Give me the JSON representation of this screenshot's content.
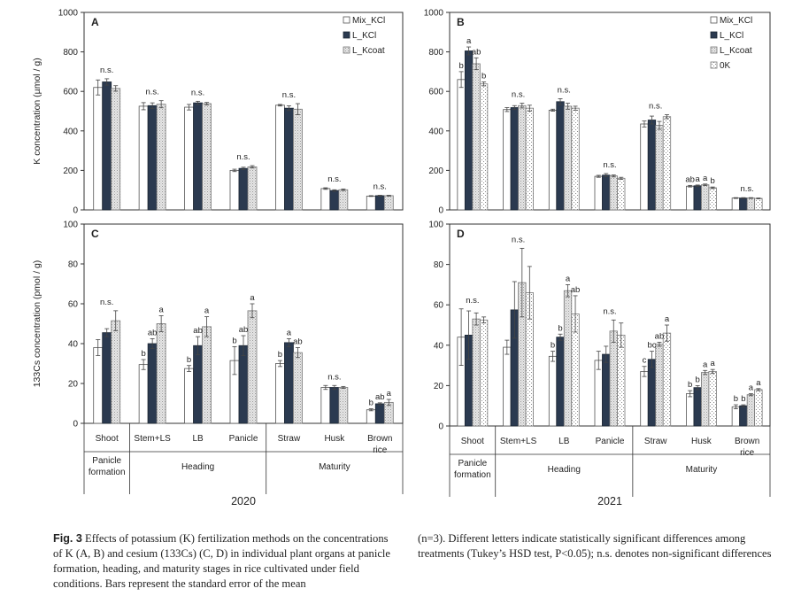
{
  "colors": {
    "Mix_KCl": "#ffffff",
    "L_KCl": "#2b3a50",
    "L_Kcoat": "#d9d9d9",
    "0K": "#ffffff"
  },
  "year_labels": [
    "2020",
    "2021"
  ],
  "caption": {
    "label": "Fig. 3",
    "left": "Effects of potassium (K) fertilization methods on the concentrations of K (A, B) and cesium (133Cs) (C, D) in individual plant organs at panicle formation, heading, and maturity stages in rice cultivated under field conditions. Bars represent the standard error of the mean",
    "right": "(n=3). Different letters indicate statistically significant differences among treatments (Tukey’s HSD test, P<0.05); n.s. denotes non-significant differences"
  },
  "chart_data": [
    {
      "panel": "A",
      "type": "bar",
      "ylabel": "K concentration (µmol / g)",
      "ylim": [
        0,
        1000
      ],
      "yticks": [
        0,
        200,
        400,
        600,
        800,
        1000
      ],
      "legend": [
        "Mix_KCl",
        "L_KCl",
        "L_Kcoat"
      ],
      "legend_position": "top-right",
      "categories": [
        "Shoot",
        "Stem+LS",
        "LB",
        "Panicle",
        "Straw",
        "Husk",
        "Brown rice"
      ],
      "series": [
        {
          "name": "Mix_KCl",
          "values": [
            620,
            525,
            520,
            200,
            530,
            108,
            70
          ],
          "errors": [
            38,
            18,
            14,
            6,
            4,
            4,
            2
          ]
        },
        {
          "name": "L_KCl",
          "values": [
            648,
            528,
            542,
            210,
            515,
            98,
            72
          ],
          "errors": [
            16,
            14,
            8,
            6,
            12,
            4,
            2
          ]
        },
        {
          "name": "L_Kcoat",
          "values": [
            615,
            535,
            538,
            218,
            510,
            102,
            72
          ],
          "errors": [
            14,
            18,
            6,
            6,
            28,
            4,
            2
          ]
        }
      ],
      "annotations": [
        "n.s.",
        "n.s.",
        "n.s.",
        "n.s.",
        "n.s.",
        "n.s.",
        "n.s."
      ]
    },
    {
      "panel": "B",
      "type": "bar",
      "ylabel": "",
      "ylim": [
        0,
        1000
      ],
      "yticks": [
        0,
        200,
        400,
        600,
        800,
        1000
      ],
      "legend": [
        "Mix_KCl",
        "L_KCl",
        "L_Kcoat",
        "0K"
      ],
      "legend_position": "top-right",
      "categories": [
        "Shoot",
        "Stem+LS",
        "LB",
        "Panicle",
        "Straw",
        "Husk",
        "Brown rice"
      ],
      "series": [
        {
          "name": "Mix_KCl",
          "values": [
            660,
            508,
            505,
            170,
            435,
            120,
            60
          ],
          "errors": [
            40,
            10,
            5,
            5,
            15,
            4,
            2
          ]
        },
        {
          "name": "L_KCl",
          "values": [
            805,
            518,
            548,
            176,
            455,
            122,
            60
          ],
          "errors": [
            20,
            10,
            15,
            8,
            20,
            4,
            2
          ]
        },
        {
          "name": "L_Kcoat",
          "values": [
            740,
            528,
            525,
            172,
            428,
            127,
            60
          ],
          "errors": [
            30,
            12,
            15,
            5,
            20,
            4,
            2
          ]
        },
        {
          "name": "0K",
          "values": [
            638,
            515,
            515,
            160,
            472,
            112,
            58
          ],
          "errors": [
            10,
            15,
            10,
            5,
            10,
            4,
            2
          ]
        }
      ],
      "annotations": [
        [
          "b",
          "a",
          "ab",
          "b"
        ],
        "n.s.",
        "n.s.",
        "n.s.",
        "n.s.",
        [
          "ab",
          "a",
          "a",
          "b"
        ],
        "n.s."
      ]
    },
    {
      "panel": "C",
      "type": "bar",
      "ylabel": "133Cs concentration (pmol / g)",
      "ylim": [
        0,
        100
      ],
      "yticks": [
        0,
        20,
        40,
        60,
        80,
        100
      ],
      "categories": [
        "Shoot",
        "Stem+LS",
        "LB",
        "Panicle",
        "Straw",
        "Husk",
        "Brown rice"
      ],
      "series": [
        {
          "name": "Mix_KCl",
          "values": [
            38,
            29.5,
            27.5,
            31.5,
            30,
            18,
            6.8
          ],
          "errors": [
            4,
            2.5,
            1.5,
            7,
            1.5,
            1,
            0.5
          ]
        },
        {
          "name": "L_KCl",
          "values": [
            45.5,
            40,
            39,
            39,
            40.5,
            18,
            9.8
          ],
          "errors": [
            2,
            2.5,
            4.5,
            5,
            2,
            1,
            0.5
          ]
        },
        {
          "name": "L_Kcoat",
          "values": [
            51.5,
            50,
            48.5,
            56.5,
            35.5,
            18,
            10.5
          ],
          "errors": [
            5,
            4,
            5,
            3.5,
            2.5,
            0.5,
            1.5
          ]
        }
      ],
      "annotations": [
        "n.s.",
        [
          "b",
          "ab",
          "a"
        ],
        [
          "b",
          "ab",
          "a"
        ],
        [
          "b",
          "ab",
          "a"
        ],
        [
          "b",
          "a",
          "ab"
        ],
        "n.s.",
        [
          "b",
          "ab",
          "a"
        ]
      ]
    },
    {
      "panel": "D",
      "type": "bar",
      "ylabel": "",
      "ylim": [
        0,
        100
      ],
      "yticks": [
        0,
        20,
        40,
        60,
        80,
        100
      ],
      "categories": [
        "Shoot",
        "Stem+LS",
        "LB",
        "Panicle",
        "Straw",
        "Husk",
        "Brown rice"
      ],
      "series": [
        {
          "name": "Mix_KCl",
          "values": [
            44,
            39,
            34.5,
            32.5,
            27,
            16,
            9.5
          ],
          "errors": [
            14,
            3.5,
            2.5,
            4.5,
            2.5,
            1.5,
            1
          ]
        },
        {
          "name": "L_KCl",
          "values": [
            45,
            57.5,
            44,
            35.5,
            33,
            19,
            10
          ],
          "errors": [
            12,
            14,
            1.5,
            4,
            4,
            1,
            0.5
          ]
        },
        {
          "name": "L_Kcoat",
          "values": [
            53,
            71,
            67,
            47,
            40.5,
            26.5,
            15.5
          ],
          "errors": [
            3,
            17,
            3,
            5.5,
            1,
            1,
            0.5
          ]
        },
        {
          "name": "0K",
          "values": [
            52.5,
            66,
            55.5,
            45,
            46,
            27,
            18
          ],
          "errors": [
            1.5,
            13,
            9,
            6,
            4,
            1,
            0.5
          ]
        }
      ],
      "annotations": [
        "n.s.",
        "n.s.",
        [
          "b",
          "b",
          "a",
          "ab"
        ],
        "n.s.",
        [
          "c",
          "bc",
          "ab",
          "a"
        ],
        [
          "b",
          "b",
          "a",
          "a"
        ],
        [
          "b",
          "b",
          "a",
          "a"
        ]
      ]
    }
  ],
  "x_groups": [
    [
      {
        "label": "Panicle\nformation",
        "count": 1
      },
      {
        "label": "Heading",
        "count": 3
      },
      {
        "label": "Maturity",
        "count": 3
      }
    ],
    [
      {
        "label": "Panicle\nformation",
        "count": 1
      },
      {
        "label": "Heading",
        "count": 3
      },
      {
        "label": "Maturity",
        "count": 3
      }
    ]
  ]
}
